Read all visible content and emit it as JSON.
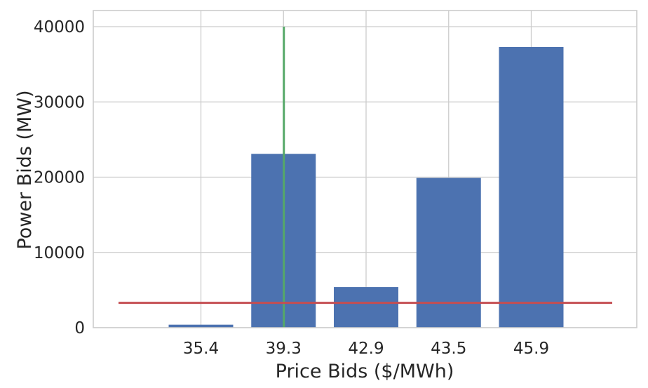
{
  "chart_data": {
    "type": "bar",
    "categories": [
      "35.4",
      "39.3",
      "42.9",
      "43.5",
      "45.9"
    ],
    "values": [
      400,
      23100,
      5400,
      19900,
      37300
    ],
    "xlabel": "Price Bids ($/MWh)",
    "ylabel": "Power Bids (MW)",
    "ylim": [
      0,
      42000
    ],
    "yticks": [
      "0",
      "10000",
      "20000",
      "30000",
      "40000"
    ],
    "grid": true,
    "bar_color": "#4c72b0",
    "overlays": [
      {
        "kind": "vertical-line",
        "at_category": "39.3",
        "from": 0,
        "to": 40000,
        "color": "#55a868"
      },
      {
        "kind": "horizontal-line",
        "y": 3300,
        "color": "#c44e52"
      }
    ]
  }
}
